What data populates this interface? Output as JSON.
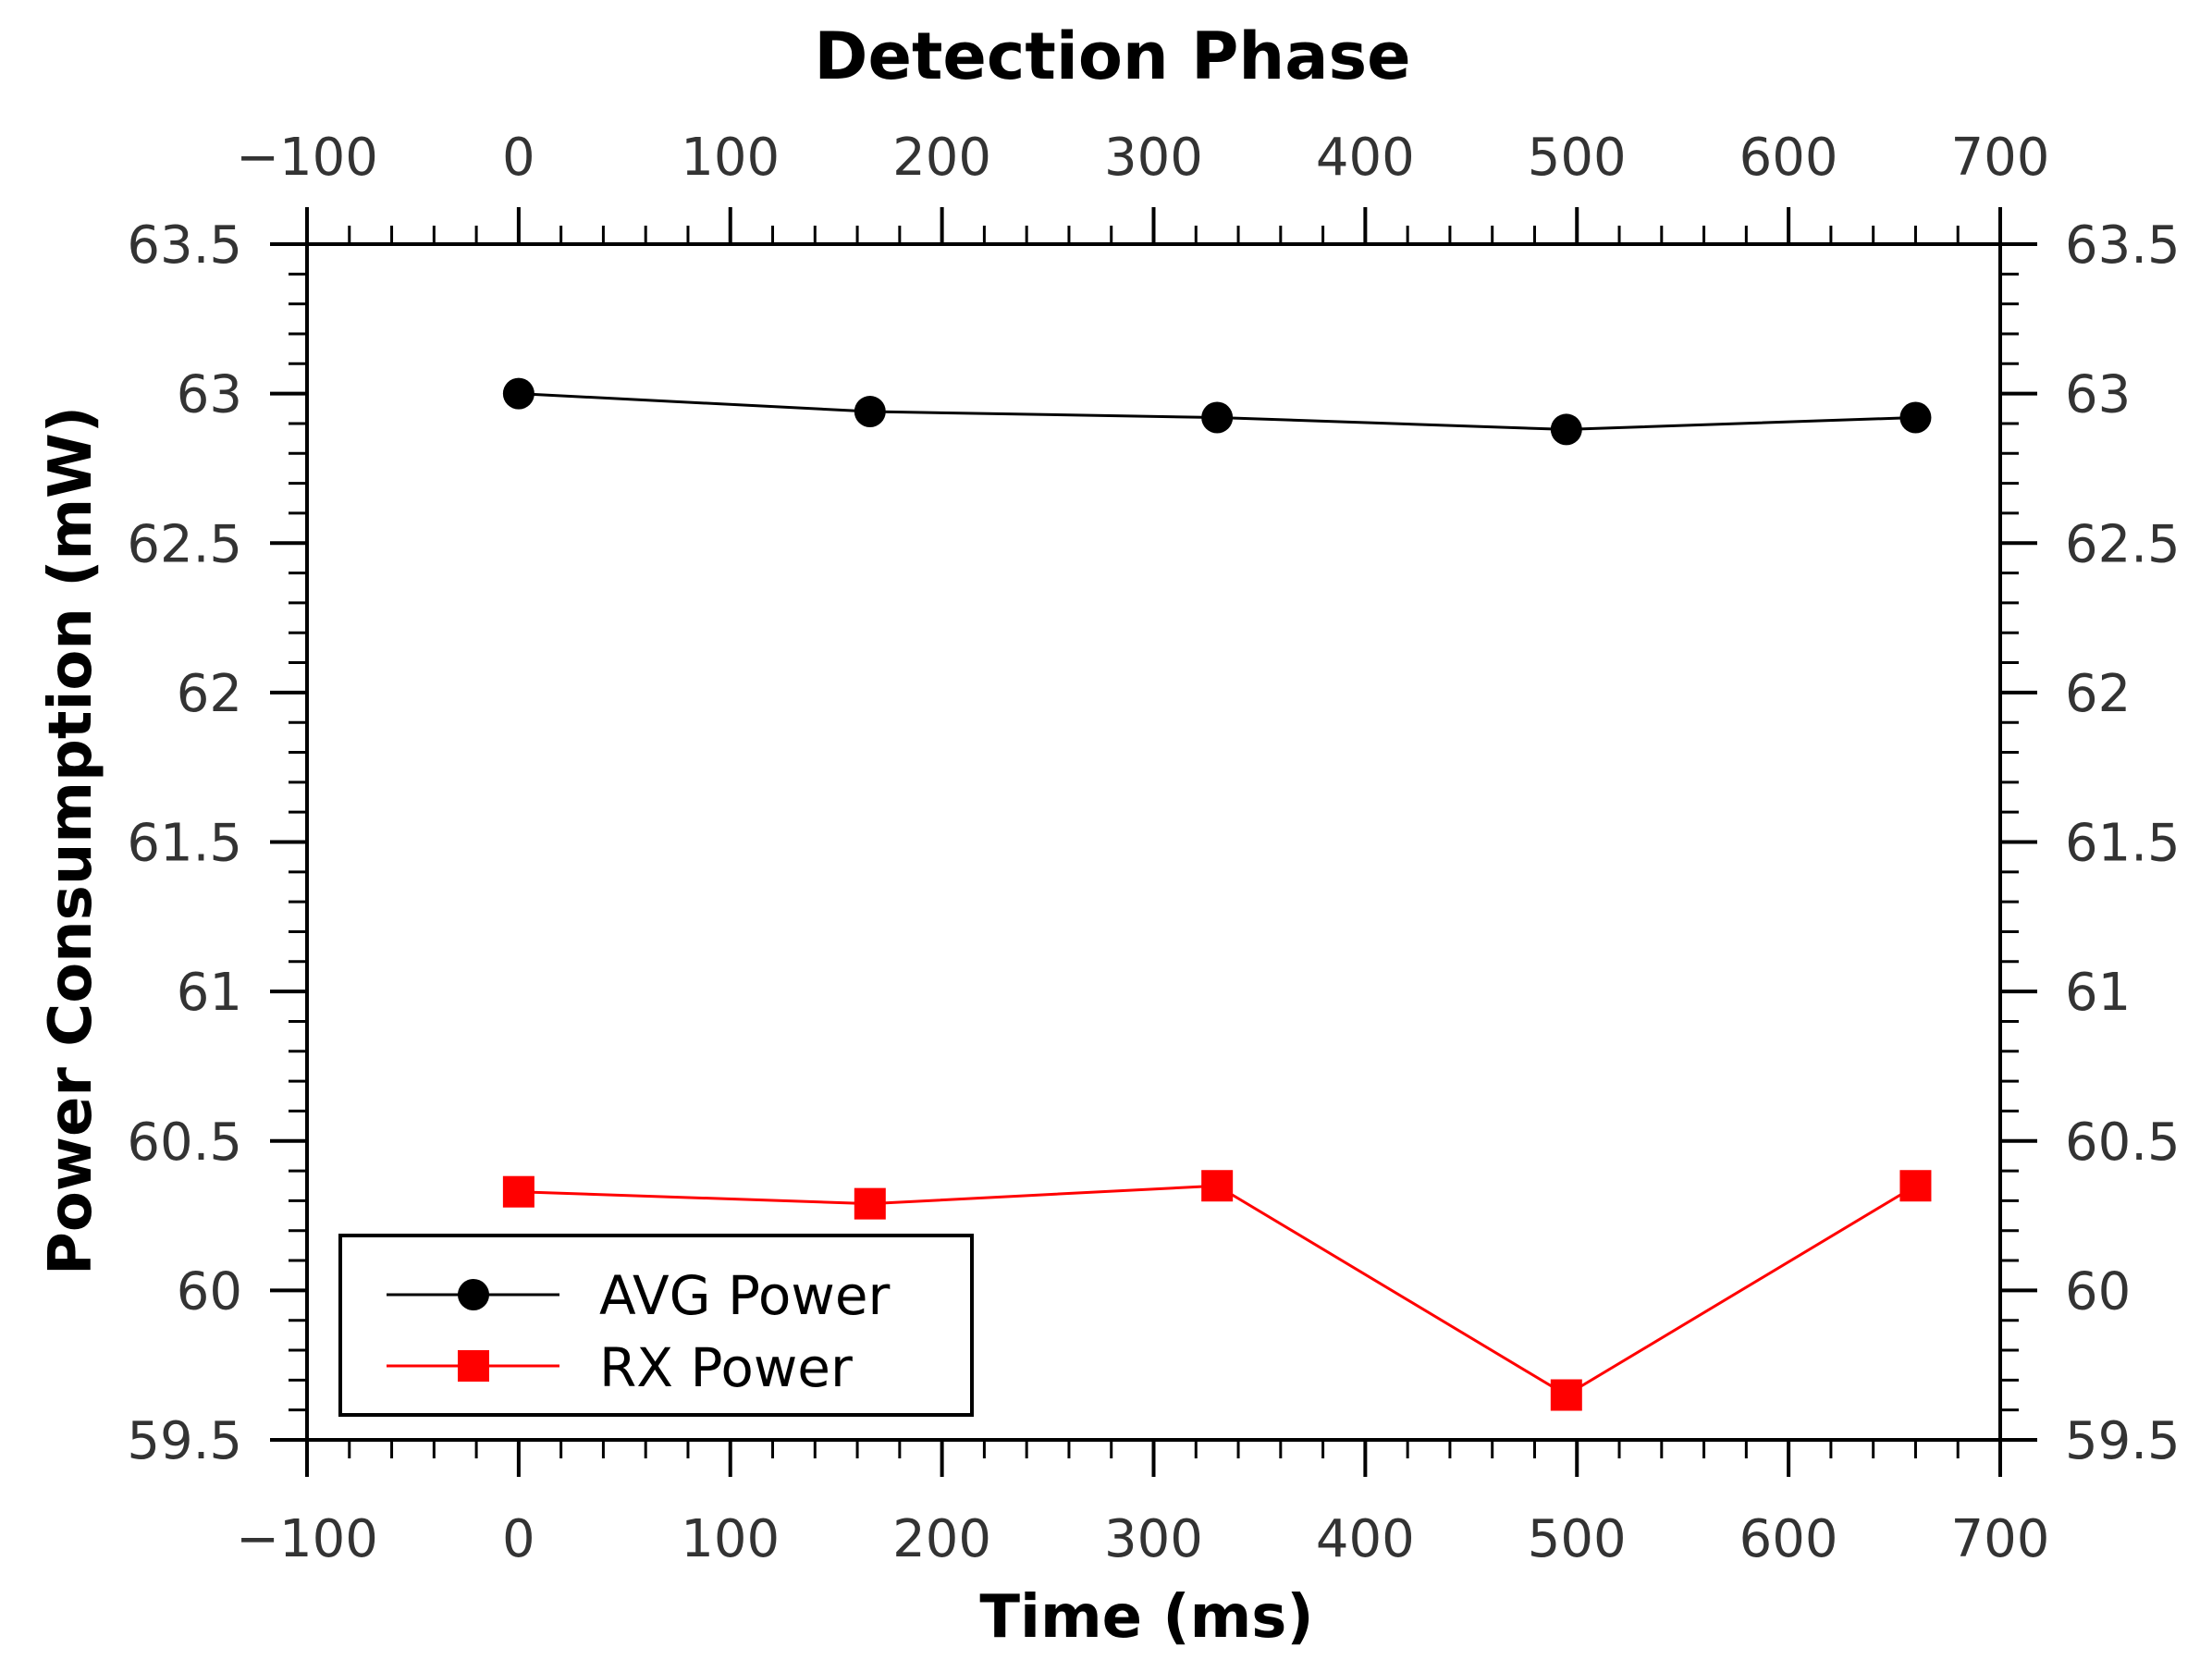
{
  "chart_data": {
    "type": "line",
    "title": "Detection Phase",
    "xlabel": "Time (ms)",
    "ylabel": "Power Consumption (mW)",
    "xlim": [
      -100,
      700
    ],
    "ylim": [
      59.5,
      63.5
    ],
    "x_major_ticks": [
      -100,
      0,
      100,
      200,
      300,
      400,
      500,
      600,
      700
    ],
    "x_tick_labels": [
      "−100",
      "0",
      "100",
      "200",
      "300",
      "400",
      "500",
      "600",
      "700"
    ],
    "y_major_ticks": [
      59.5,
      60,
      60.5,
      61,
      61.5,
      62,
      62.5,
      63,
      63.5
    ],
    "y_tick_labels": [
      "59.5",
      "60",
      "60.5",
      "61",
      "61.5",
      "62",
      "62.5",
      "63",
      "63.5"
    ],
    "x_minor_step": 20,
    "y_minor_step": 0.1,
    "grid": false,
    "legend_position": "bottom-left",
    "series": [
      {
        "name": "AVG Power",
        "color": "#000000",
        "marker": "circle",
        "x": [
          0,
          166,
          330,
          495,
          660
        ],
        "y": [
          63.0,
          62.94,
          62.92,
          62.88,
          62.92
        ]
      },
      {
        "name": "RX Power",
        "color": "#ff0000",
        "marker": "square",
        "x": [
          0,
          166,
          330,
          495,
          660
        ],
        "y": [
          60.33,
          60.29,
          60.35,
          59.65,
          60.35
        ]
      }
    ]
  }
}
